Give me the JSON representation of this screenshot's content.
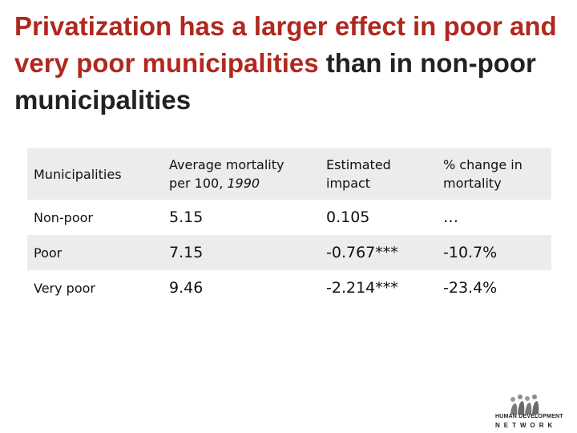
{
  "slide": {
    "title_part1": "Privatization has a larger effect in poor and very poor municipalities",
    "title_part2": " than in non-poor municipalities"
  },
  "table": {
    "headers": {
      "col1": "Municipalities",
      "col2_line1": "Average mortality",
      "col2_line2a": "per 100, ",
      "col2_line2b": "1990",
      "col3_line1": "Estimated",
      "col3_line2": "impact",
      "col4_line1": "% change in",
      "col4_line2": "mortality"
    },
    "rows": [
      {
        "municipality": "Non-poor",
        "mortality": "5.15",
        "impact": "0.105",
        "change": "…"
      },
      {
        "municipality": "Poor",
        "mortality": "7.15",
        "impact": "-0.767***",
        "change": "-10.7%"
      },
      {
        "municipality": "Very poor",
        "mortality": "9.46",
        "impact": "-2.214***",
        "change": "-23.4%"
      }
    ]
  },
  "logo": {
    "line1": "HUMAN DEVELOPMENT",
    "line2": "NETWORK"
  }
}
